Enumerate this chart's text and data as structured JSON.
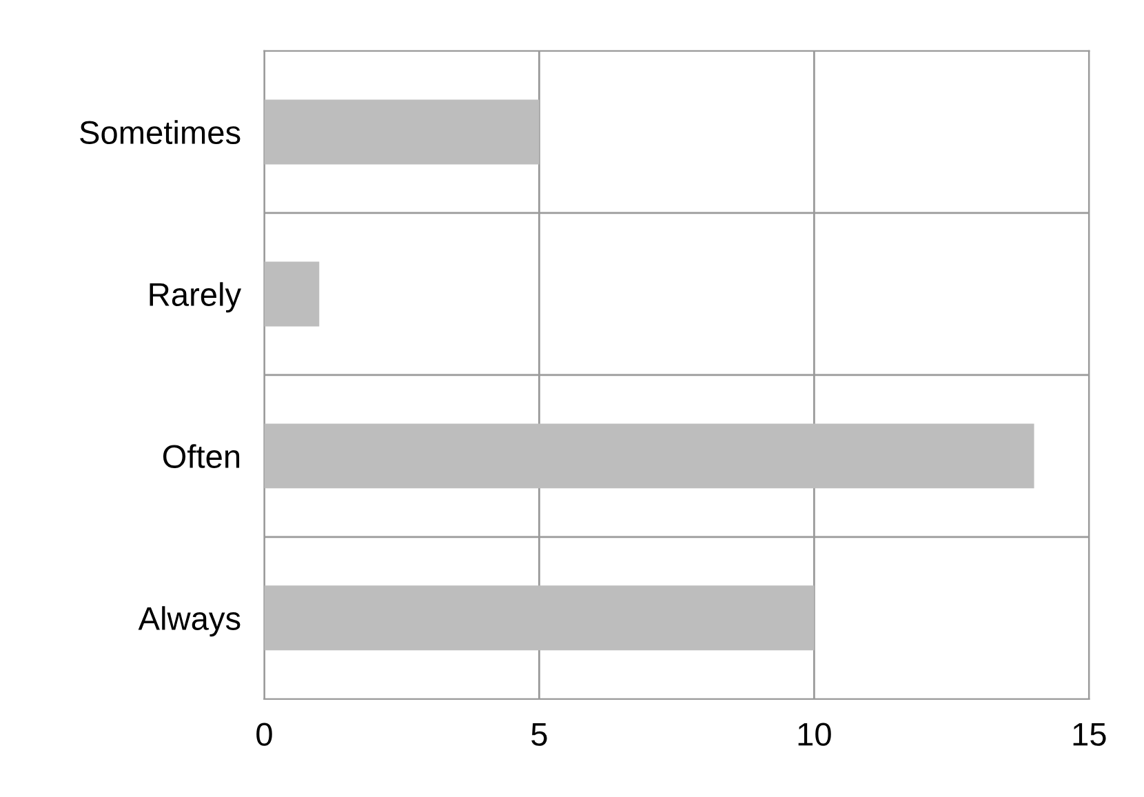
{
  "chart_data": {
    "type": "bar",
    "orientation": "horizontal",
    "categories": [
      "Sometimes",
      "Rarely",
      "Often",
      "Always"
    ],
    "values": [
      5,
      1,
      14,
      10
    ],
    "color": "#bdbdbd",
    "xlim": [
      0,
      15
    ],
    "xticks": [
      0,
      5,
      10,
      15
    ],
    "grid": true,
    "legend": false
  }
}
